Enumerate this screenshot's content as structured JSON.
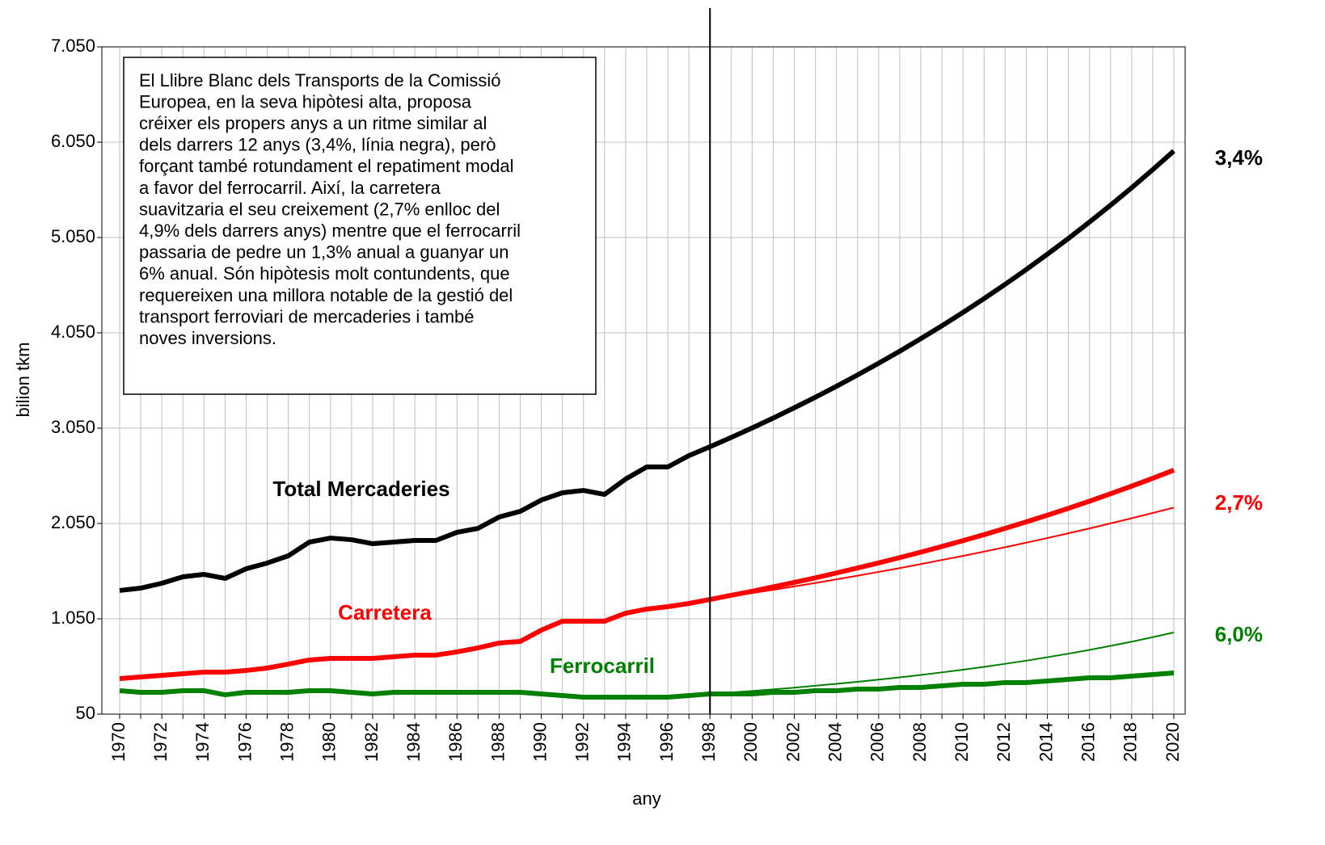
{
  "chart_data": {
    "type": "line",
    "x_label": "any",
    "y_label": "bilion tkm",
    "categories": [
      "1970",
      null,
      "1972",
      null,
      "1974",
      null,
      "1976",
      null,
      "1978",
      null,
      "1980",
      null,
      "1982",
      null,
      "1984",
      null,
      "1986",
      null,
      "1988",
      null,
      "1990",
      null,
      "1992",
      null,
      "1994",
      null,
      "1996",
      null,
      "1998",
      null,
      "2000",
      null,
      "2002",
      null,
      "2004",
      null,
      "2006",
      null,
      "2008",
      null,
      "2010",
      null,
      "2012",
      null,
      "2014",
      null,
      "2016",
      null,
      "2018",
      null,
      "2020"
    ],
    "ylim": [
      50,
      7050
    ],
    "yticks": [
      {
        "value": 50,
        "label": "50"
      },
      {
        "value": 1050,
        "label": "1.050"
      },
      {
        "value": 2050,
        "label": "2.050"
      },
      {
        "value": 3050,
        "label": "3.050"
      },
      {
        "value": 4050,
        "label": "4.050"
      },
      {
        "value": 5050,
        "label": "5.050"
      },
      {
        "value": 6050,
        "label": "6.050"
      },
      {
        "value": 7050,
        "label": "7.050"
      }
    ],
    "grid": true,
    "vline": "1998",
    "series": [
      {
        "color": "#000000",
        "width": "thick",
        "values": [
          1347,
          1372,
          1423,
          1491,
          1516,
          1474,
          1575,
          1635,
          1711,
          1855,
          1897,
          1880,
          1838,
          1855,
          1872,
          1872,
          1957,
          1999,
          2118,
          2177,
          2296,
          2372,
          2397,
          2355,
          2516,
          2643,
          2643,
          2762,
          2855,
          2952,
          3052,
          3156,
          3264,
          3375,
          3489,
          3608,
          3731,
          3857,
          3989,
          4124,
          4264,
          4409,
          4559,
          4714,
          4875,
          5040,
          5212,
          5389,
          5572,
          5762,
          5958
        ]
      },
      {
        "color": "#ff0000",
        "width": "thick",
        "values": [
          423,
          440,
          457,
          474,
          491,
          491,
          508,
          533,
          575,
          618,
          635,
          635,
          635,
          652,
          669,
          669,
          703,
          745,
          796,
          813,
          931,
          1025,
          1025,
          1025,
          1109,
          1152,
          1177,
          1211,
          1253,
          1296,
          1339,
          1385,
          1432,
          1480,
          1531,
          1583,
          1636,
          1692,
          1749,
          1809,
          1870,
          1933,
          1999,
          2067,
          2137,
          2209,
          2284,
          2362,
          2442,
          2524,
          2610
        ]
      },
      {
        "color": "#ff0000",
        "width": "thin",
        "values": [
          null,
          null,
          null,
          null,
          null,
          null,
          null,
          null,
          null,
          null,
          null,
          null,
          null,
          null,
          null,
          null,
          null,
          null,
          null,
          null,
          null,
          null,
          null,
          null,
          null,
          null,
          null,
          null,
          1253,
          1286,
          1320,
          1354,
          1390,
          1426,
          1464,
          1502,
          1542,
          1582,
          1624,
          1667,
          1710,
          1755,
          1801,
          1849,
          1897,
          1947,
          1998,
          2051,
          2105,
          2160,
          2217
        ]
      },
      {
        "color": "#008000",
        "width": "thick",
        "values": [
          296,
          279,
          279,
          296,
          296,
          253,
          279,
          279,
          279,
          296,
          296,
          279,
          262,
          279,
          279,
          279,
          279,
          279,
          279,
          279,
          262,
          245,
          228,
          228,
          228,
          228,
          228,
          245,
          262,
          262,
          262,
          279,
          279,
          296,
          296,
          313,
          313,
          330,
          330,
          347,
          364,
          364,
          381,
          381,
          397,
          414,
          431,
          431,
          448,
          465,
          482
        ]
      },
      {
        "color": "#008000",
        "width": "thin",
        "values": [
          null,
          null,
          null,
          null,
          null,
          null,
          null,
          null,
          null,
          null,
          null,
          null,
          null,
          null,
          null,
          null,
          null,
          null,
          null,
          null,
          null,
          null,
          null,
          null,
          null,
          null,
          null,
          null,
          262,
          277,
          293,
          310,
          328,
          348,
          368,
          389,
          412,
          436,
          461,
          488,
          516,
          546,
          578,
          611,
          647,
          684,
          724,
          766,
          810,
          857,
          907
        ]
      }
    ],
    "annotations": [
      {
        "text": "Total Mercaderies",
        "color": "#000000"
      },
      {
        "text": "Carretera",
        "color": "#ff0000"
      },
      {
        "text": "Ferrocarril",
        "color": "#008000"
      },
      {
        "text": "3,4%",
        "color": "#000000"
      },
      {
        "text": "2,7%",
        "color": "#ff0000"
      },
      {
        "text": "6,0%",
        "color": "#008000"
      }
    ],
    "textbox": {
      "lines": [
        "El Llibre Blanc dels Transports de la Comissió",
        "Europea, en la seva hipòtesi alta, proposa",
        "créixer els propers anys a un ritme similar al",
        "dels darrers 12 anys (3,4%, línia negra), però",
        "forçant també rotundament el repatiment modal",
        "a favor del ferrocarril. Així, la carretera",
        "suavitzaria el seu creixement (2,7% enlloc del",
        "4,9% dels darrers anys) mentre que el ferrocarril",
        "passaria de pedre un 1,3% anual a guanyar un",
        "6% anual. Són hipòtesis molt contundents, que",
        "requereixen una millora notable de la gestió del",
        "transport ferroviari de mercaderies i també",
        "noves inversions."
      ]
    }
  }
}
